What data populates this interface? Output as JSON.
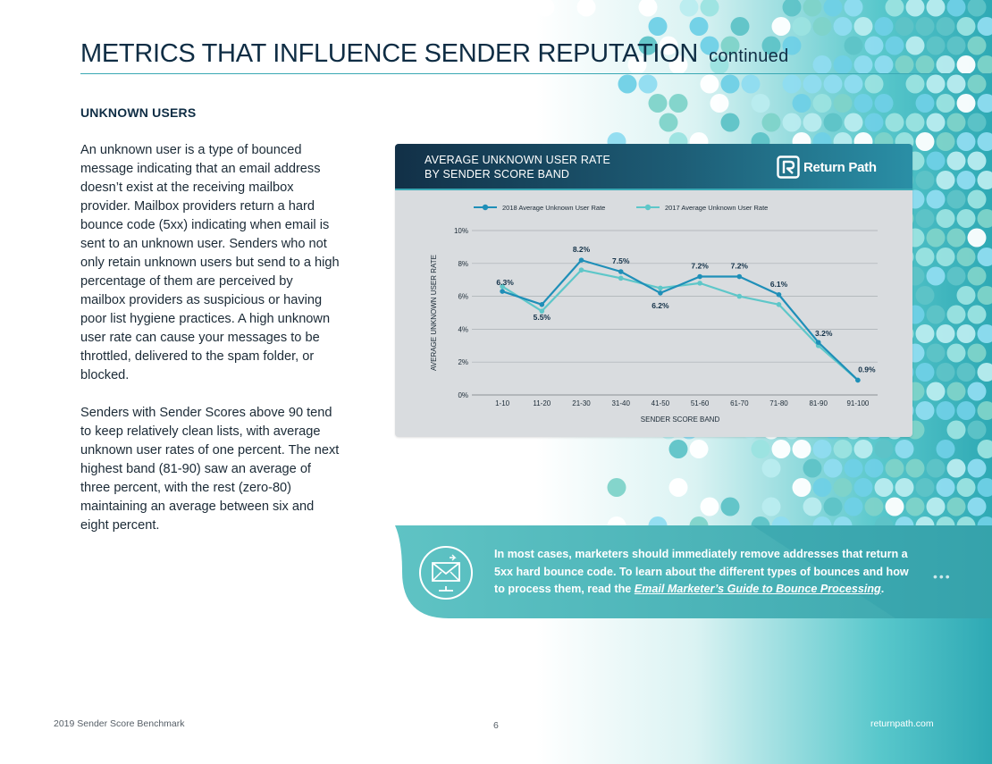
{
  "page": {
    "title": "METRICS THAT INFLUENCE SENDER REPUTATION",
    "title_suffix": "continued"
  },
  "section": {
    "heading": "UNKNOWN USERS",
    "paragraphs": [
      "An unknown user is a type of bounced message indicating that an email address doesn’t exist at the receiving mailbox provider. Mailbox providers return a hard bounce code (5xx) indicating when email is sent to an unknown user. Senders who not only retain unknown users but send to a high percentage of them are perceived by mailbox providers as suspicious or having poor list hygiene practices. A high unknown user rate can cause your messages to be throttled, delivered to the spam folder, or blocked.",
      "Senders with Sender Scores  above 90 tend to keep relatively clean lists, with average unknown user rates of one percent. The next highest band (81-90) saw an average of three percent, with the rest (zero-80) maintaining an average between six and eight percent."
    ]
  },
  "chart_header": {
    "title_line1": "AVERAGE UNKNOWN USER RATE",
    "title_line2": "BY SENDER SCORE BAND",
    "logo_text": "Return Path"
  },
  "chart_data": {
    "type": "line",
    "title": "AVERAGE UNKNOWN USER RATE BY SENDER SCORE BAND",
    "xlabel": "SENDER SCORE BAND",
    "ylabel": "AVERAGE UNKNOWN USER RATE",
    "categories": [
      "1-10",
      "11-20",
      "21-30",
      "31-40",
      "41-50",
      "51-60",
      "61-70",
      "71-80",
      "81-90",
      "91-100"
    ],
    "ylim": [
      0,
      10
    ],
    "yticks": [
      0,
      2,
      4,
      6,
      8,
      10
    ],
    "ytick_labels": [
      "0%",
      "2%",
      "4%",
      "6%",
      "8%",
      "10%"
    ],
    "grid": true,
    "legend_position": "top",
    "series": [
      {
        "name": "2018 Average Unknown User Rate",
        "color": "#1f8fb8",
        "values": [
          6.3,
          5.5,
          8.2,
          7.5,
          6.2,
          7.2,
          7.2,
          6.1,
          3.2,
          0.9
        ],
        "data_labels": [
          "6.3%",
          "5.5%",
          "8.2%",
          "7.5%",
          "6.2%",
          "7.2%",
          "7.2%",
          "6.1%",
          "3.2%",
          "0.9%"
        ]
      },
      {
        "name": "2017 Average Unknown User Rate",
        "color": "#5ec7c9",
        "values": [
          6.6,
          5.1,
          7.6,
          7.1,
          6.5,
          6.8,
          6.0,
          5.5,
          3.0,
          0.9
        ]
      }
    ]
  },
  "callout": {
    "text_before": "In most cases, marketers should immediately remove addresses that return a 5xx hard bounce code. To learn about the different types of bounces and how to process them, read the ",
    "link_text": "Email Marketer’s Guide to Bounce Processing",
    "text_after": ".",
    "icon": "email-bounce-icon",
    "dots": "•••"
  },
  "footer": {
    "left": "2019 Sender Score Benchmark",
    "page_number": "6",
    "right": "returnpath.com"
  }
}
